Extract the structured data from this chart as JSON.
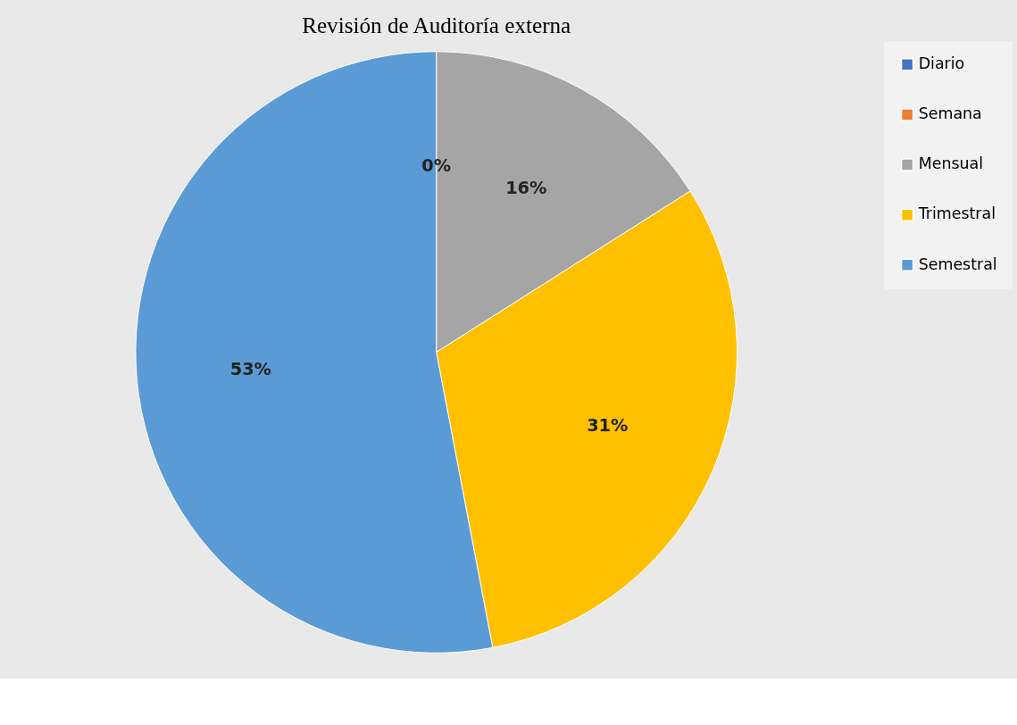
{
  "chart_data": {
    "type": "pie",
    "title": "Revisión de Auditoría externa",
    "categories": [
      "Diario",
      "Semana",
      "Mensual",
      "Trimestral",
      "Semestral"
    ],
    "values": [
      0,
      0,
      16,
      31,
      53
    ],
    "colors": [
      "#4472c4",
      "#ed7d31",
      "#a5a5a5",
      "#ffc000",
      "#5b9bd5"
    ],
    "value_labels": [
      "0%",
      null,
      "16%",
      "31%",
      "53%"
    ],
    "legend": "right"
  }
}
